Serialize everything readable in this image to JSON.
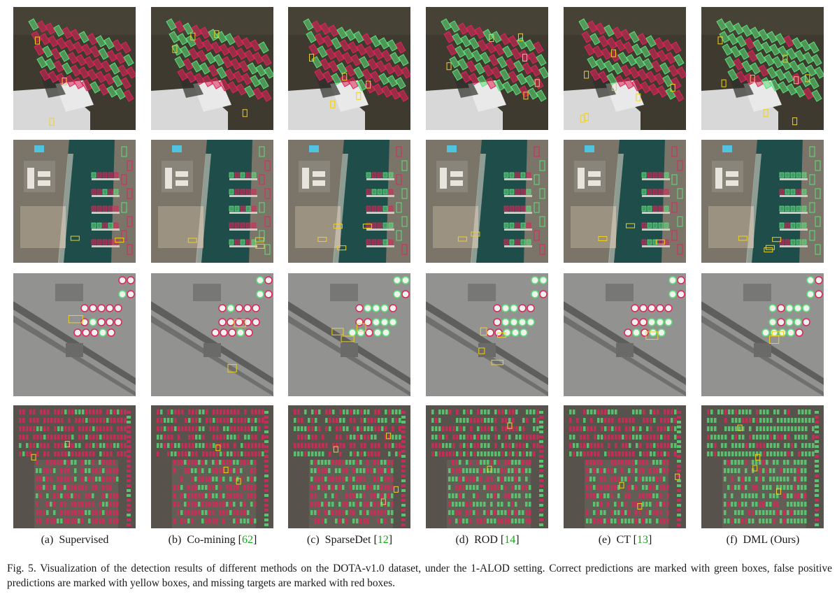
{
  "figure": {
    "columns": [
      {
        "tag": "(a)",
        "method": "Supervised",
        "ref": ""
      },
      {
        "tag": "(b)",
        "method": "Co-mining",
        "ref": "62"
      },
      {
        "tag": "(c)",
        "method": "SparseDet",
        "ref": "12"
      },
      {
        "tag": "(d)",
        "method": "ROD",
        "ref": "14"
      },
      {
        "tag": "(e)",
        "method": "CT",
        "ref": "13"
      },
      {
        "tag": "(f)",
        "method": "DML (Ours)",
        "ref": ""
      }
    ],
    "rows": [
      {
        "scene": "parking-lot-buses"
      },
      {
        "scene": "harbor-marina"
      },
      {
        "scene": "storage-tanks-grayscale"
      },
      {
        "scene": "dense-car-parking"
      }
    ],
    "legend_colors": {
      "correct": "#5ee07a",
      "false_positive": "#f1d21c",
      "missing": "#e0245a"
    },
    "caption": {
      "label": "Fig. 5.",
      "text": "Visualization of the detection results of different methods on the DOTA-v1.0 dataset, under the 1-ALOD setting. Correct predictions are marked with green boxes, false positive predictions are marked with yellow boxes, and missing targets are marked with red boxes."
    }
  }
}
